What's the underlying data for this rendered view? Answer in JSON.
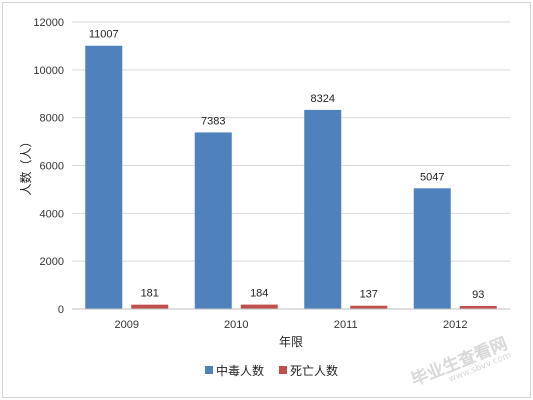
{
  "chart_data": {
    "type": "bar",
    "title": "",
    "xlabel": "年限",
    "ylabel": "人数（人）",
    "categories": [
      "2009",
      "2010",
      "2011",
      "2012"
    ],
    "series": [
      {
        "name": "中毒人数",
        "color": "#4f81bd",
        "values": [
          11007,
          7383,
          8324,
          5047
        ]
      },
      {
        "name": "死亡人数",
        "color": "#c0504d",
        "values": [
          181,
          184,
          137,
          93
        ]
      }
    ],
    "ylim": [
      0,
      12000
    ],
    "yticks": [
      0,
      2000,
      4000,
      6000,
      8000,
      10000,
      12000
    ],
    "grid": true,
    "legend": "bottom",
    "data_labels": true
  },
  "watermark": {
    "text": "毕业生查看网",
    "url": "www.sbvv.com"
  }
}
